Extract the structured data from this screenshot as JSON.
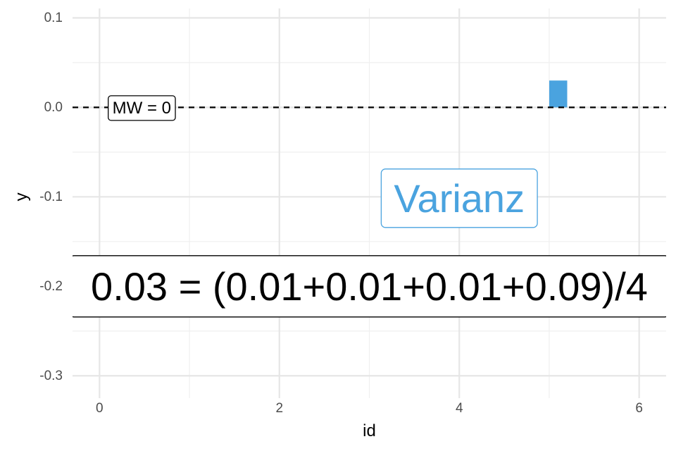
{
  "chart_data": {
    "type": "bar",
    "title": "",
    "xlabel": "id",
    "ylabel": "y",
    "xlim": [
      -0.3,
      6.3
    ],
    "ylim": [
      -0.325,
      0.12
    ],
    "x_ticks": [
      0,
      2,
      4,
      6
    ],
    "x_tick_labels": [
      "0",
      "2",
      "4",
      "6"
    ],
    "x_minor_ticks": [
      1,
      3,
      5
    ],
    "y_ticks": [
      0.1,
      0.0,
      -0.1,
      -0.2,
      -0.3
    ],
    "y_tick_labels": [
      "0.1",
      "0.0",
      "-0.1",
      "-0.2",
      "-0.3"
    ],
    "y_minor_ticks": [
      0.05,
      -0.05,
      -0.15,
      -0.25
    ],
    "bars": [
      {
        "x": 5.1,
        "width": 0.2,
        "value": 0.03,
        "color": "#4aa3df"
      }
    ],
    "reference_line": {
      "y": 0,
      "style": "dashed",
      "color": "#000000",
      "label": "MW = 0",
      "label_x": 0.47
    },
    "annotations": [
      {
        "text": "Varianz",
        "x": 4.0,
        "y": -0.1,
        "color": "#4aa3df",
        "boxed": true
      },
      {
        "text": "0.03 = (0.01+0.01+0.01+0.09)/4",
        "x": 3.0,
        "y": -0.2,
        "color": "#000000",
        "boxed": true
      }
    ]
  }
}
